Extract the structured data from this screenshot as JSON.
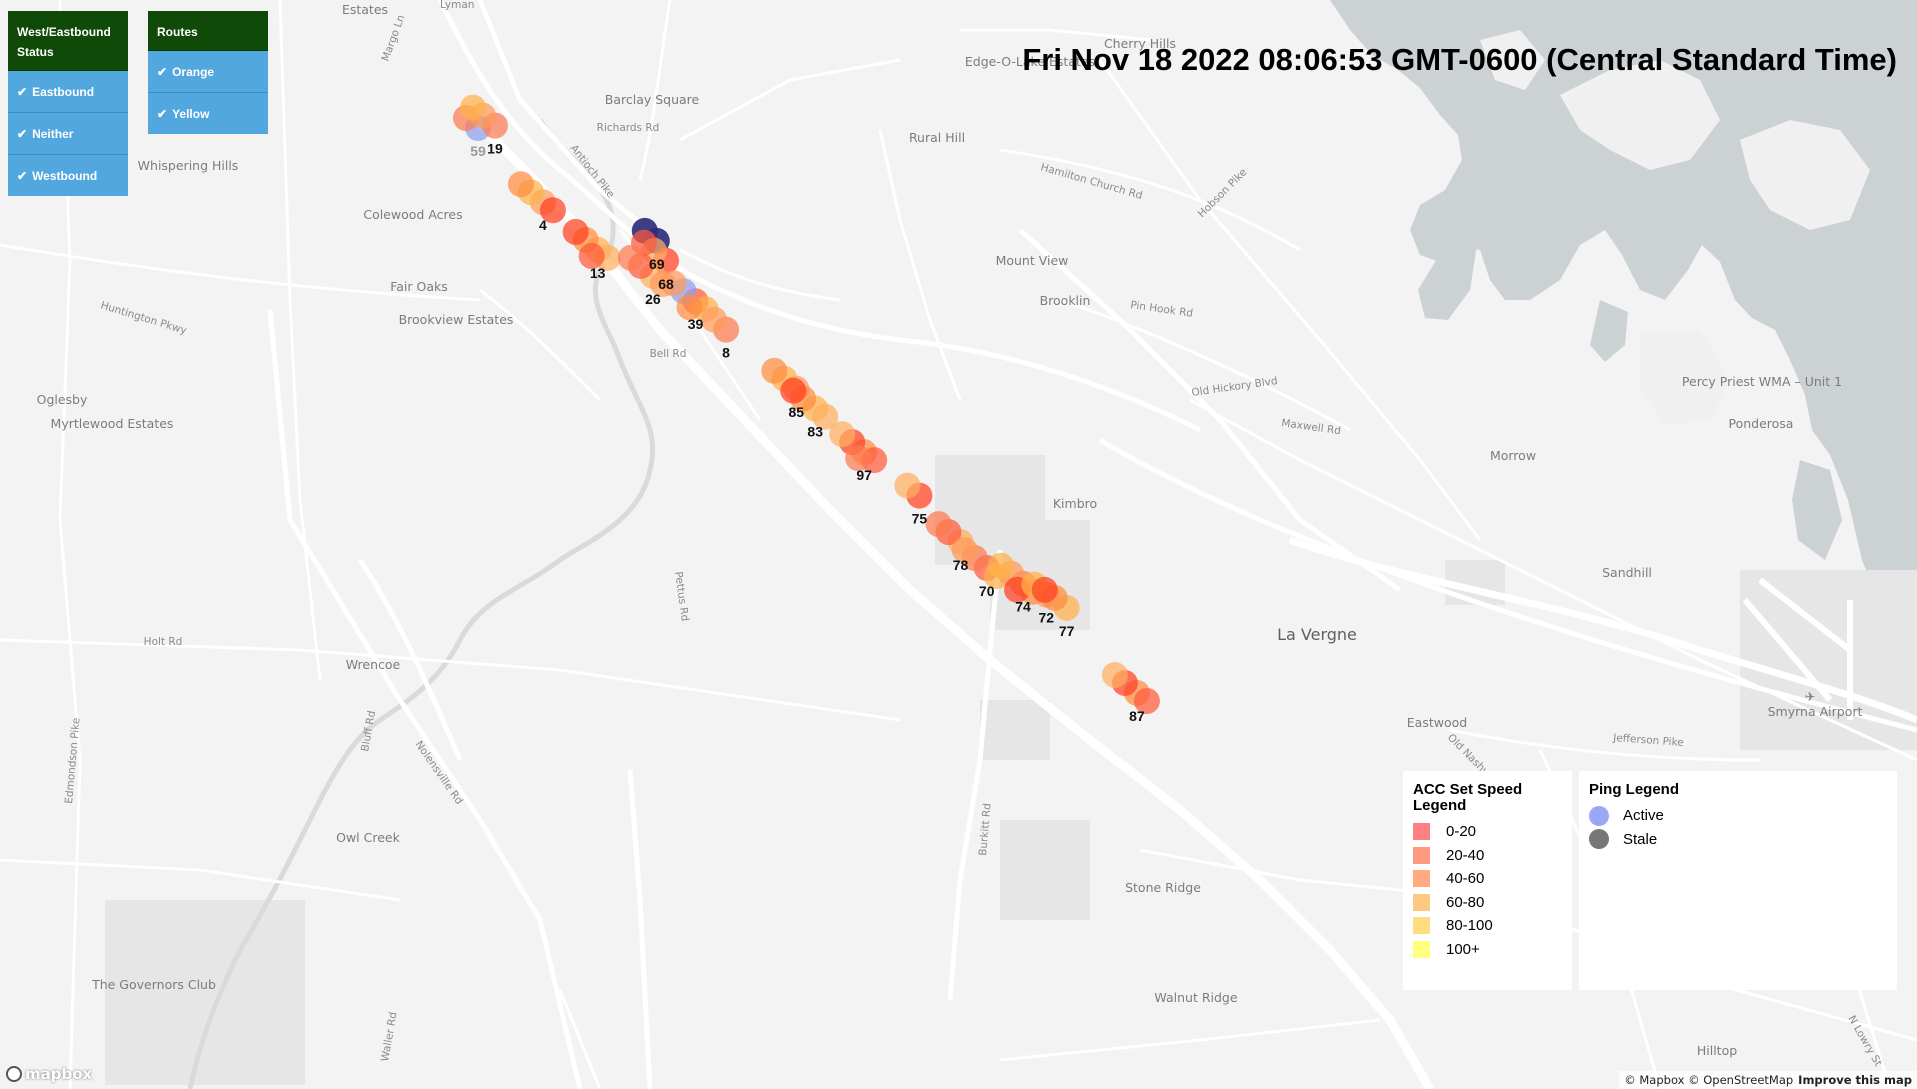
{
  "filters": {
    "direction": {
      "title": "West/Eastbound Status",
      "items": [
        "Eastbound",
        "Neither",
        "Westbound"
      ]
    },
    "routes": {
      "title": "Routes",
      "items": [
        "Orange",
        "Yellow"
      ]
    }
  },
  "timestamp": "Fri Nov 18 2022 08:06:53 GMT-0600 (Central Standard Time)",
  "speed_legend": {
    "title": "ACC Set Speed Legend",
    "bins": [
      {
        "label": "0-20",
        "color": "#ff8080"
      },
      {
        "label": "20-40",
        "color": "#ff9980"
      },
      {
        "label": "40-60",
        "color": "#ffaa80"
      },
      {
        "label": "60-80",
        "color": "#ffc880"
      },
      {
        "label": "80-100",
        "color": "#ffdd80"
      },
      {
        "label": "100+",
        "color": "#ffff80"
      }
    ]
  },
  "ping_legend": {
    "title": "Ping Legend",
    "items": [
      {
        "label": "Active",
        "color": "#9aa7f5"
      },
      {
        "label": "Stale",
        "color": "#777777"
      }
    ]
  },
  "map_labels": {
    "places": [
      "Estates",
      "Edge-O-Lake Estates",
      "Cherry Hills",
      "Barclay Square",
      "Whispering Hills",
      "Rural Hill",
      "Colewood Acres",
      "Mount View",
      "Fair Oaks",
      "Brooklin",
      "Brookview Estates",
      "Oglesby",
      "Myrtlewood Estates",
      "Percy Priest WMA – Unit 1",
      "Ponderosa",
      "Morrow",
      "Kimbro",
      "Sandhill",
      "La Vergne",
      "Wrencoe",
      "Eastwood",
      "Smyrna Airport",
      "Owl Creek",
      "Stone Ridge",
      "The Governors Club",
      "Walnut Ridge",
      "Hilltop"
    ],
    "roads": [
      "Margo Ln",
      "Richards Rd",
      "Antioch Pike",
      "Bell Rd",
      "Hamilton Church Rd",
      "Hobson Pike",
      "Huntington Pkwy",
      "Pin Hook Rd",
      "Old Hickory Blvd",
      "Maxwell Rd",
      "Pettus Rd",
      "Holt Rd",
      "Edmondson Pike",
      "Burkitt Rd",
      "Nolensville Rd",
      "Jefferson Pike",
      "Old Nashville",
      "Waller Rd",
      "N Lowry St",
      "Bluff Rd",
      "Lyman"
    ]
  },
  "vehicles": [
    {
      "id": "59",
      "lat": 36.0585,
      "lon": -86.6585,
      "ping": "active"
    },
    {
      "id": "19",
      "lat": 36.0589,
      "lon": -86.655,
      "ping": "active"
    },
    {
      "id": "4",
      "lat": 36.0462,
      "lon": -86.6451,
      "ping": "active"
    },
    {
      "id": "13",
      "lat": 36.0383,
      "lon": -86.6338,
      "ping": "active"
    },
    {
      "id": "69",
      "lat": 36.0398,
      "lon": -86.6216,
      "ping": "stale"
    },
    {
      "id": "68",
      "lat": 36.0365,
      "lon": -86.6197,
      "ping": "active"
    },
    {
      "id": "26",
      "lat": 36.034,
      "lon": -86.6224,
      "ping": "active"
    },
    {
      "id": "39",
      "lat": 36.0298,
      "lon": -86.6136,
      "ping": "active"
    },
    {
      "id": "8",
      "lat": 36.0251,
      "lon": -86.6073,
      "ping": "active"
    },
    {
      "id": "85",
      "lat": 36.0153,
      "lon": -86.5928,
      "ping": "active"
    },
    {
      "id": "83",
      "lat": 36.012,
      "lon": -86.5889,
      "ping": "active"
    },
    {
      "id": "97",
      "lat": 36.0048,
      "lon": -86.5788,
      "ping": "active"
    },
    {
      "id": "75",
      "lat": 35.9976,
      "lon": -86.5674,
      "ping": "active"
    },
    {
      "id": "78",
      "lat": 35.9899,
      "lon": -86.5589,
      "ping": "active"
    },
    {
      "id": "70",
      "lat": 35.9856,
      "lon": -86.5535,
      "ping": "active"
    },
    {
      "id": "74",
      "lat": 35.983,
      "lon": -86.546,
      "ping": "active"
    },
    {
      "id": "72",
      "lat": 35.9812,
      "lon": -86.5412,
      "ping": "active"
    },
    {
      "id": "77",
      "lat": 35.979,
      "lon": -86.537,
      "ping": "active"
    },
    {
      "id": "87",
      "lat": 35.9649,
      "lon": -86.5225,
      "ping": "active"
    }
  ],
  "attribution": {
    "logo": "mapbox",
    "text": "© Mapbox © OpenStreetMap",
    "improve": "Improve this map"
  }
}
